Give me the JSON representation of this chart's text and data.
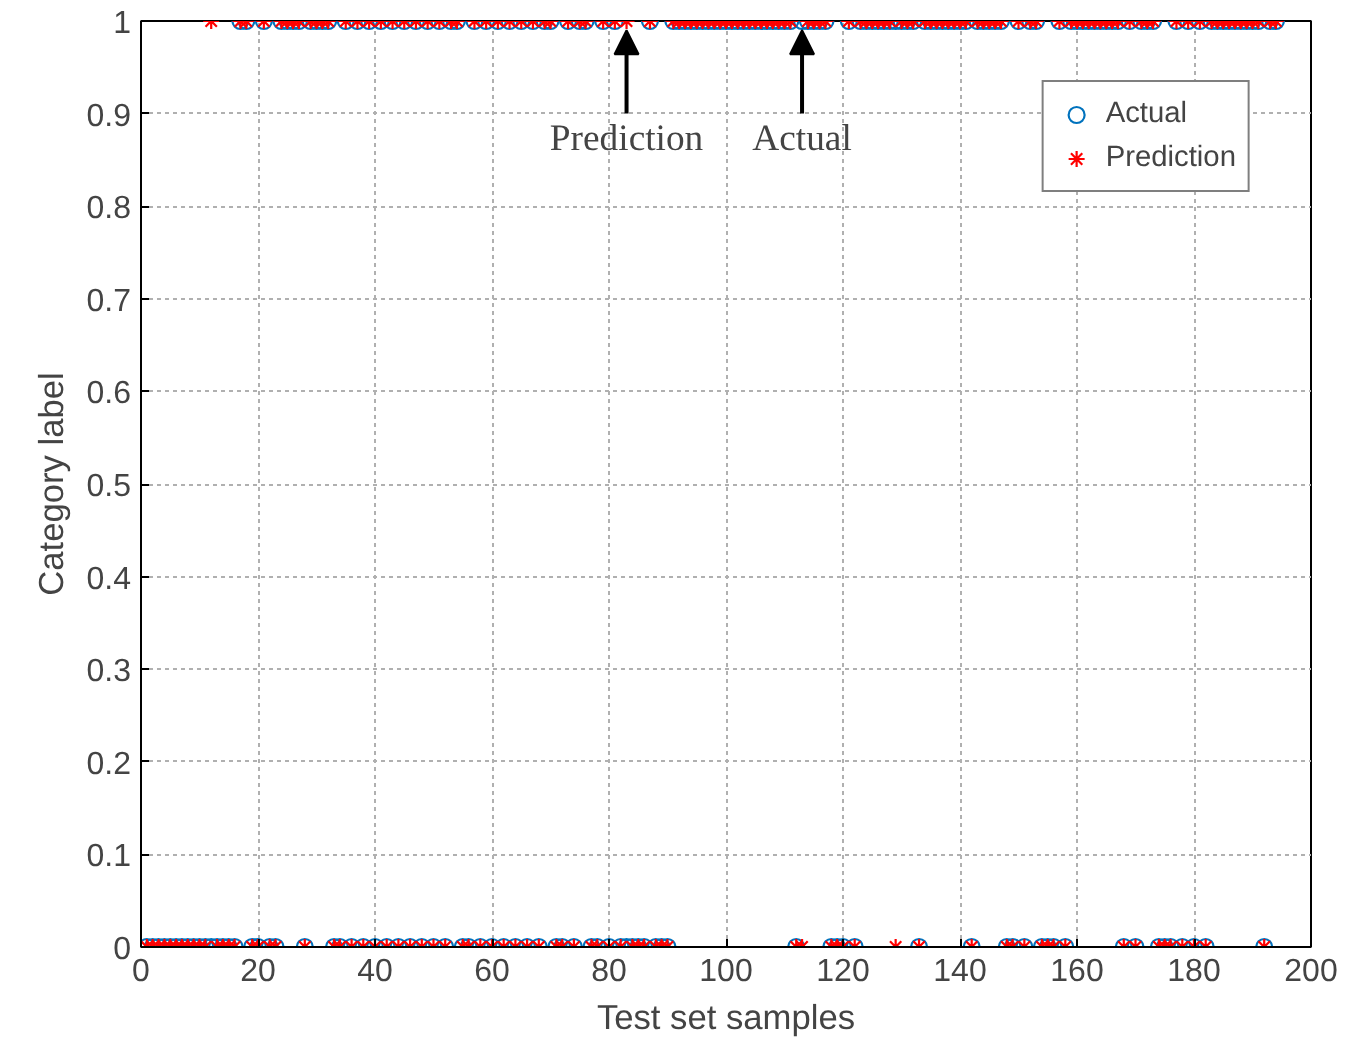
{
  "chart_data": {
    "type": "scatter",
    "xlabel": "Test set samples",
    "ylabel": "Category label",
    "x": [
      1,
      2,
      3,
      4,
      5,
      6,
      7,
      8,
      9,
      10,
      11,
      12,
      13,
      14,
      15,
      16,
      17,
      18,
      19,
      20,
      21,
      22,
      23,
      24,
      25,
      26,
      27,
      28,
      29,
      30,
      31,
      32,
      33,
      34,
      35,
      36,
      37,
      38,
      39,
      40,
      41,
      42,
      43,
      44,
      45,
      46,
      47,
      48,
      49,
      50,
      51,
      52,
      53,
      54,
      55,
      56,
      57,
      58,
      59,
      60,
      61,
      62,
      63,
      64,
      65,
      66,
      67,
      68,
      69,
      70,
      71,
      72,
      73,
      74,
      75,
      76,
      77,
      78,
      79,
      80,
      81,
      82,
      83,
      84,
      85,
      86,
      87,
      88,
      89,
      90,
      91,
      92,
      93,
      94,
      95,
      96,
      97,
      98,
      99,
      100,
      101,
      102,
      103,
      104,
      105,
      106,
      107,
      108,
      109,
      110,
      111,
      112,
      113,
      114,
      115,
      116,
      117,
      118,
      119,
      120,
      121,
      122,
      123,
      124,
      125,
      126,
      127,
      128,
      129,
      130,
      131,
      132,
      133,
      134,
      135,
      136,
      137,
      138,
      139,
      140,
      141,
      142,
      143,
      144,
      145,
      146,
      147,
      148,
      149,
      150,
      151,
      152,
      153,
      154,
      155,
      156,
      157,
      158,
      159,
      160,
      161,
      162,
      163,
      164,
      165,
      166,
      167,
      168,
      169,
      170,
      171,
      172,
      173,
      174,
      175,
      176,
      177,
      178,
      179,
      180,
      181,
      182,
      183,
      184,
      185,
      186,
      187,
      188,
      189,
      190,
      191,
      192,
      193,
      194
    ],
    "series": [
      {
        "name": "Actual",
        "color": "#0072bd",
        "marker": "circle",
        "values": [
          0,
          0,
          0,
          0,
          0,
          0,
          0,
          0,
          0,
          0,
          0,
          0,
          0,
          0,
          0,
          0,
          1,
          1,
          0,
          0,
          1,
          0,
          0,
          1,
          1,
          1,
          1,
          0,
          1,
          1,
          1,
          1,
          0,
          0,
          1,
          0,
          1,
          0,
          1,
          0,
          1,
          0,
          1,
          0,
          1,
          0,
          1,
          0,
          1,
          0,
          1,
          0,
          1,
          1,
          0,
          0,
          1,
          0,
          1,
          0,
          1,
          0,
          1,
          0,
          1,
          0,
          1,
          0,
          1,
          1,
          0,
          0,
          1,
          0,
          1,
          1,
          0,
          0,
          1,
          0,
          1,
          0,
          0,
          0,
          0,
          0,
          1,
          0,
          0,
          0,
          1,
          1,
          1,
          1,
          1,
          1,
          1,
          1,
          1,
          1,
          1,
          1,
          1,
          1,
          1,
          1,
          1,
          1,
          1,
          1,
          1,
          0,
          1,
          1,
          1,
          1,
          1,
          0,
          0,
          0,
          1,
          0,
          1,
          1,
          1,
          1,
          1,
          1,
          1,
          1,
          1,
          1,
          0,
          1,
          1,
          1,
          1,
          1,
          1,
          1,
          1,
          0,
          1,
          1,
          1,
          1,
          1,
          0,
          0,
          1,
          0,
          1,
          1,
          0,
          0,
          0,
          1,
          0,
          1,
          1,
          1,
          1,
          1,
          1,
          1,
          1,
          1,
          0,
          1,
          0,
          1,
          1,
          1,
          0,
          0,
          0,
          1,
          0,
          1,
          0,
          1,
          0,
          1,
          1,
          1,
          1,
          1,
          1,
          1,
          1,
          1,
          0,
          1,
          1
        ]
      },
      {
        "name": "Prediction",
        "color": "#ff0000",
        "marker": "cross",
        "values": [
          0,
          0,
          0,
          0,
          0,
          0,
          0,
          0,
          0,
          0,
          0,
          1,
          0,
          0,
          0,
          0,
          1,
          1,
          0,
          0,
          1,
          0,
          0,
          1,
          1,
          1,
          1,
          0,
          1,
          1,
          1,
          1,
          0,
          0,
          1,
          0,
          1,
          0,
          1,
          0,
          1,
          0,
          1,
          0,
          1,
          0,
          1,
          0,
          1,
          0,
          1,
          0,
          1,
          1,
          0,
          0,
          1,
          0,
          1,
          0,
          1,
          0,
          1,
          0,
          1,
          0,
          1,
          0,
          1,
          1,
          0,
          0,
          1,
          0,
          1,
          1,
          0,
          0,
          1,
          0,
          1,
          0,
          1,
          0,
          0,
          0,
          1,
          0,
          0,
          0,
          1,
          1,
          1,
          1,
          1,
          1,
          1,
          1,
          1,
          1,
          1,
          1,
          1,
          1,
          1,
          1,
          1,
          1,
          1,
          1,
          1,
          0,
          0,
          1,
          1,
          1,
          1,
          0,
          0,
          0,
          1,
          0,
          1,
          1,
          1,
          1,
          1,
          1,
          0,
          1,
          1,
          1,
          0,
          1,
          1,
          1,
          1,
          1,
          1,
          1,
          1,
          0,
          1,
          1,
          1,
          1,
          1,
          0,
          0,
          1,
          0,
          1,
          1,
          0,
          0,
          0,
          1,
          0,
          1,
          1,
          1,
          1,
          1,
          1,
          1,
          1,
          1,
          0,
          1,
          0,
          1,
          1,
          1,
          0,
          0,
          0,
          1,
          0,
          1,
          0,
          1,
          0,
          1,
          1,
          1,
          1,
          1,
          1,
          1,
          1,
          1,
          0,
          1,
          1
        ]
      }
    ],
    "annotations": [
      {
        "text": "Prediction",
        "x": 83,
        "y": 1
      },
      {
        "text": "Actual",
        "x": 113,
        "y": 1
      }
    ],
    "xlim": [
      0,
      200
    ],
    "xticks": [
      0,
      20,
      40,
      60,
      80,
      100,
      120,
      140,
      160,
      180,
      200
    ],
    "ylim": [
      0,
      1
    ],
    "yticks": [
      0,
      0.1,
      0.2,
      0.3,
      0.4,
      0.5,
      0.6,
      0.7,
      0.8,
      0.9,
      1
    ],
    "grid": true,
    "legend": "top right"
  }
}
